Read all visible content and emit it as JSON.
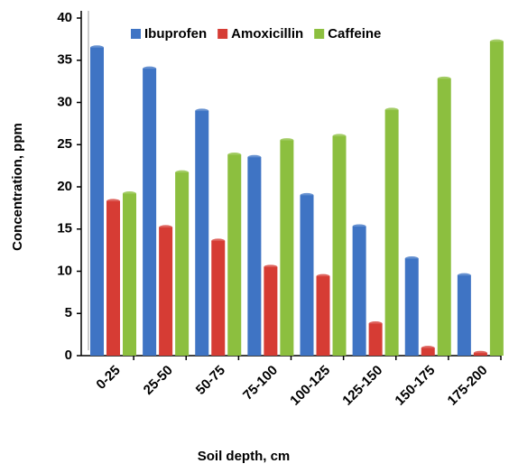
{
  "chart_data": {
    "type": "bar",
    "x_label": "Soil depth, cm",
    "y_label": "Concentration, ppm",
    "categories": [
      "0-25",
      "25-50",
      "50-75",
      "75-100",
      "100-125",
      "125-150",
      "150-175",
      "175-200"
    ],
    "series": [
      {
        "name": "Ibuprofen",
        "color": "#3f74c4",
        "values": [
          36.5,
          34,
          29,
          23.5,
          19,
          15.3,
          11.5,
          9.5
        ]
      },
      {
        "name": "Amoxicillin",
        "color": "#d63c34",
        "values": [
          18.3,
          15.2,
          13.6,
          10.5,
          9.4,
          3.8,
          0.9,
          0.3
        ]
      },
      {
        "name": "Caffeine",
        "color": "#8cbf3f",
        "values": [
          19.2,
          21.7,
          23.8,
          25.5,
          26,
          29.1,
          32.8,
          37.2
        ]
      }
    ],
    "ylim": [
      0,
      40
    ],
    "yticks": [
      0,
      5,
      10,
      15,
      20,
      25,
      30,
      35,
      40
    ],
    "legend": "top"
  }
}
